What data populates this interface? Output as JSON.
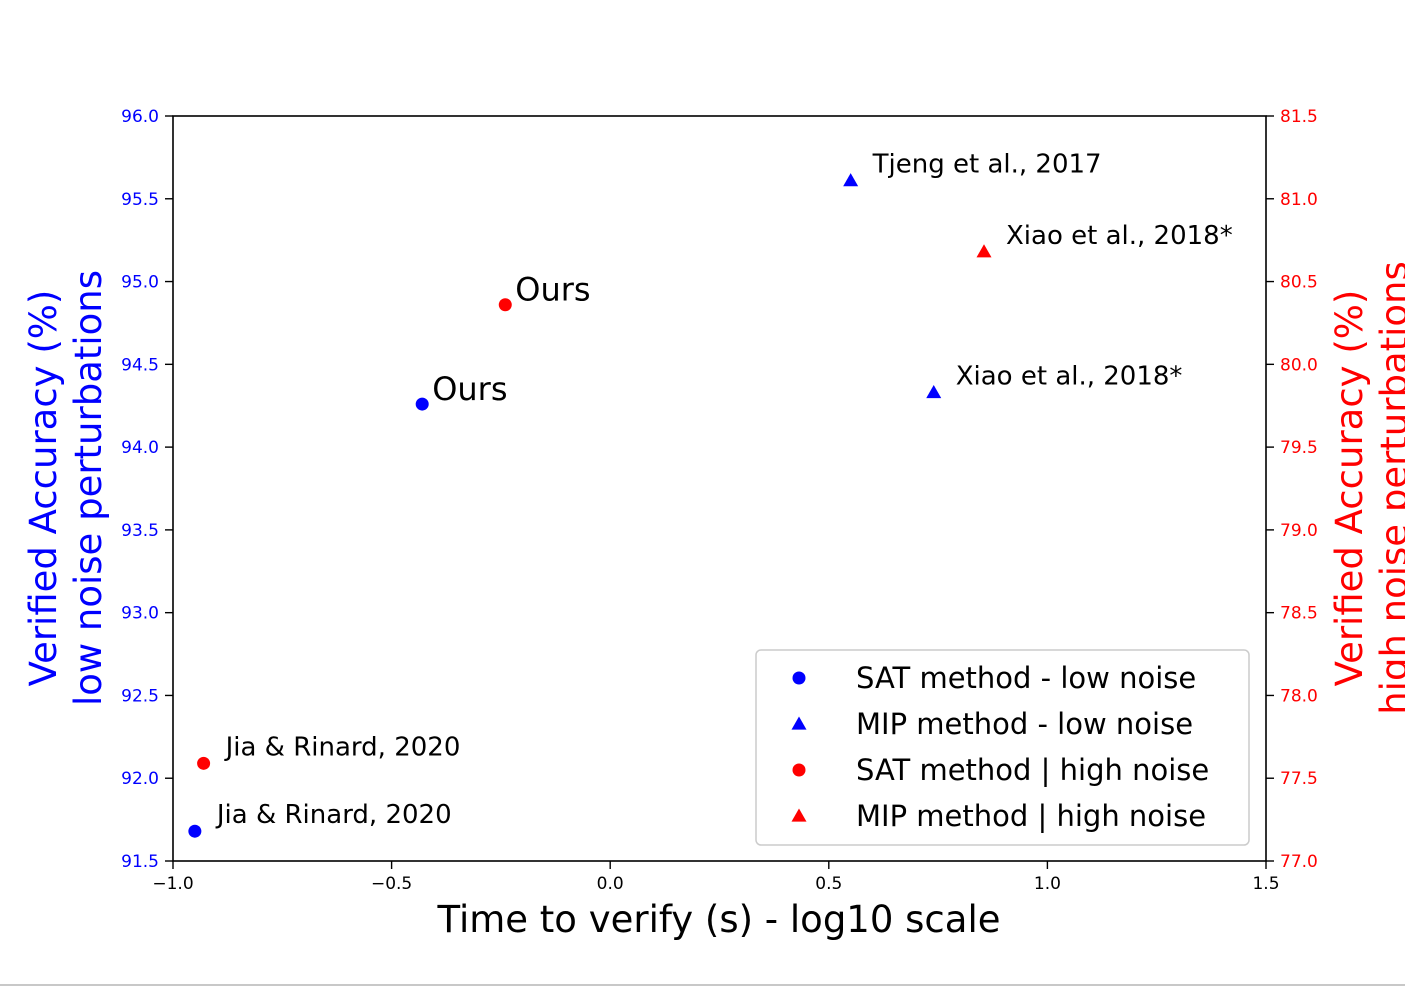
{
  "chart_data": {
    "type": "scatter",
    "xlabel": "Time to verify (s) - log10 scale",
    "ylabel_left": [
      "Verified Accuracy (%)",
      "low noise perturbations"
    ],
    "ylabel_right": [
      "Verified Accuracy (%)",
      "high noise perturbations"
    ],
    "xlim": [
      -1.0,
      1.5
    ],
    "ylim_left": [
      91.5,
      96.0
    ],
    "ylim_right": [
      77.0,
      81.5
    ],
    "x_ticks": [
      "−1.0",
      "−0.5",
      "0.0",
      "0.5",
      "1.0",
      "1.5"
    ],
    "y_ticks_left": [
      "91.5",
      "92.0",
      "92.5",
      "93.0",
      "93.5",
      "94.0",
      "94.5",
      "95.0",
      "95.5",
      "96.0"
    ],
    "y_ticks_right": [
      "77.0",
      "77.5",
      "78.0",
      "78.5",
      "79.0",
      "79.5",
      "80.0",
      "80.5",
      "81.0",
      "81.5"
    ],
    "colors": {
      "low": "#0000ff",
      "high": "#ff0000",
      "axis": "#000000"
    },
    "legend_placement": "lower-right",
    "series": [
      {
        "name": "SAT method - low noise",
        "marker": "circle",
        "color": "#0000ff",
        "axis": "left",
        "points": [
          {
            "x": -0.43,
            "y": 94.26,
            "label": "Ours"
          },
          {
            "x": -0.95,
            "y": 91.68,
            "label": "Jia & Rinard, 2020"
          }
        ]
      },
      {
        "name": "MIP method - low noise",
        "marker": "triangle",
        "color": "#0000ff",
        "axis": "left",
        "points": [
          {
            "x": 0.55,
            "y": 95.61,
            "label": "Tjeng et al., 2017"
          },
          {
            "x": 0.74,
            "y": 94.33,
            "label": "Xiao et al., 2018*"
          }
        ]
      },
      {
        "name": "SAT method | high noise",
        "marker": "circle",
        "color": "#ff0000",
        "axis": "right",
        "points": [
          {
            "x": -0.24,
            "y": 80.36,
            "label": "Ours"
          },
          {
            "x": -0.93,
            "y": 77.59,
            "label": "Jia & Rinard, 2020"
          }
        ]
      },
      {
        "name": "MIP method | high noise",
        "marker": "triangle",
        "color": "#ff0000",
        "axis": "right",
        "points": [
          {
            "x": 0.855,
            "y": 80.68,
            "label": "Xiao et al., 2018*"
          }
        ]
      }
    ]
  }
}
